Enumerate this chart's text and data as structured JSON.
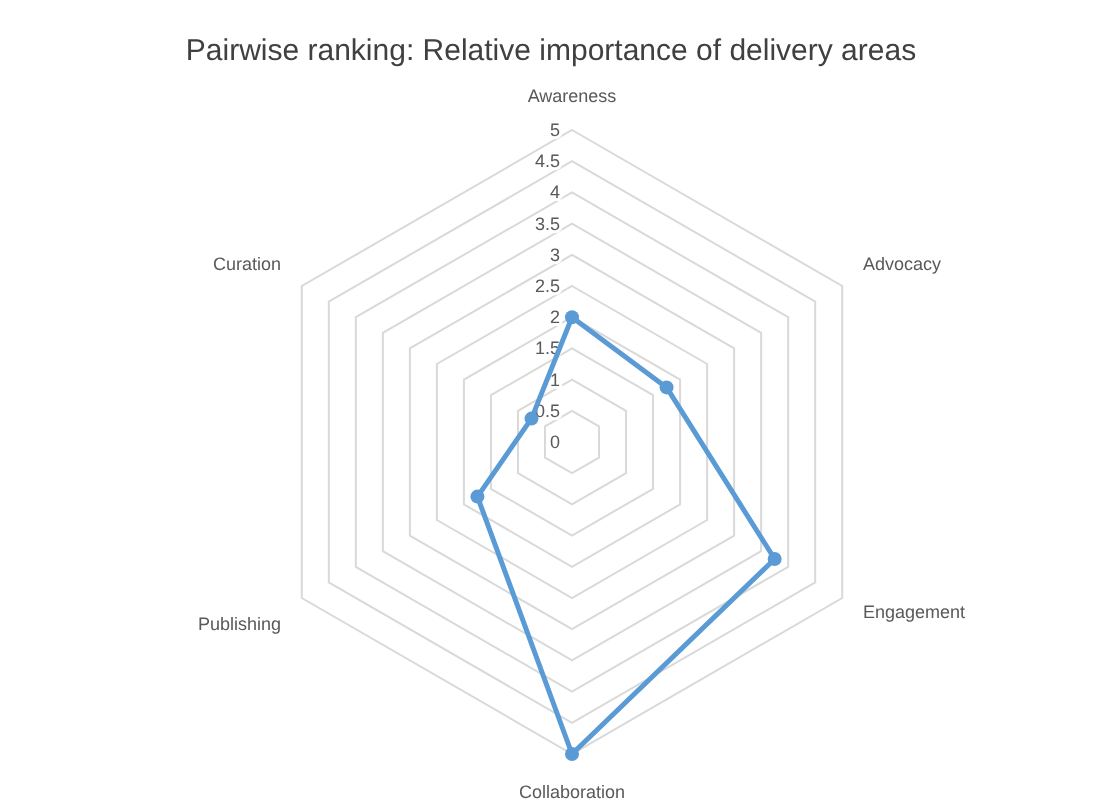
{
  "chart_data": {
    "type": "radar",
    "title": "Pairwise ranking: Relative importance of delivery areas",
    "categories": [
      "Awareness",
      "Advocacy",
      "Engagement",
      "Collaboration",
      "Publishing",
      "Curation"
    ],
    "series": [
      {
        "color": "#5b9bd5",
        "values": [
          2,
          1.75,
          3.75,
          5,
          1.75,
          0.75
        ]
      }
    ],
    "ylim": [
      0,
      5
    ],
    "yticks": [
      0,
      0.5,
      1,
      1.5,
      2,
      2.5,
      3,
      3.5,
      4,
      4.5,
      5
    ],
    "grid": true,
    "marker": "circle"
  }
}
